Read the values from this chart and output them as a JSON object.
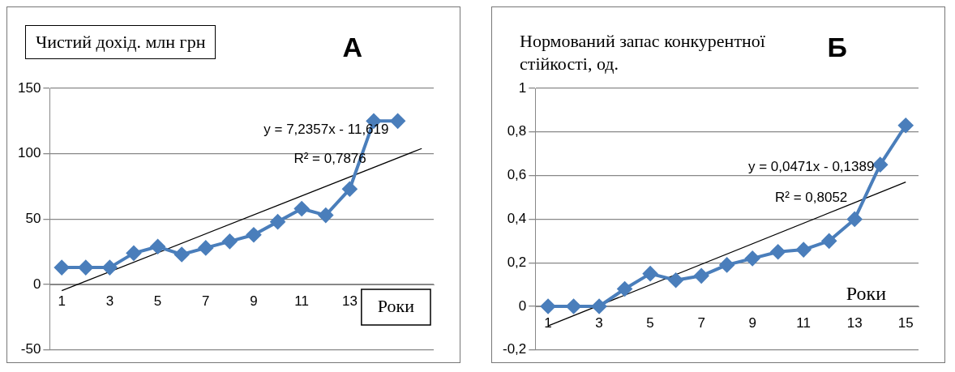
{
  "chart_data": [
    {
      "type": "line",
      "title": "А",
      "ylabel": "Чистий дохід. млн  грн",
      "xlabel": "Роки",
      "grid": "y",
      "marker": "diamond",
      "line_style": "solid",
      "legend": false,
      "xlim": [
        0.5,
        16.5
      ],
      "xticks": [
        1,
        3,
        5,
        7,
        9,
        11,
        13
      ],
      "ylim": [
        -50,
        150
      ],
      "yticks": [
        -50,
        0,
        50,
        100,
        150
      ],
      "series": [
        {
          "x": [
            1,
            2,
            3,
            4,
            5,
            6,
            7,
            8,
            9,
            10,
            11,
            12,
            13,
            14,
            15
          ],
          "color": "#4a7ebb",
          "values": [
            13,
            13,
            13,
            24,
            29,
            23,
            28,
            33,
            38,
            48,
            58,
            53,
            73,
            125,
            125
          ]
        },
        {
          "type": "line",
          "x": [
            1,
            16
          ],
          "color": "#000000",
          "marker": "none",
          "values": [
            -4.7,
            104
          ]
        }
      ],
      "annotations": [
        "y = 7,2357x - 11,619",
        "R² = 0,7876"
      ]
    },
    {
      "type": "line",
      "title": "Б",
      "ylabel": "Нормований запас конкурентної стійкості, од.",
      "xlabel": "Роки",
      "grid": "y",
      "marker": "diamond",
      "line_style": "solid",
      "legend": false,
      "xlim": [
        0.5,
        15.5
      ],
      "xticks": [
        1,
        3,
        5,
        7,
        9,
        11,
        13,
        15
      ],
      "ylim": [
        -0.2,
        1
      ],
      "yticks": [
        {
          "value": -0.2,
          "label": "-0,2"
        },
        0,
        {
          "value": 0.2,
          "label": "0,2"
        },
        {
          "value": 0.4,
          "label": "0,4"
        },
        {
          "value": 0.6,
          "label": "0,6"
        },
        {
          "value": 0.8,
          "label": "0,8"
        },
        1
      ],
      "series": [
        {
          "x": [
            1,
            2,
            3,
            4,
            5,
            6,
            7,
            8,
            9,
            10,
            11,
            12,
            13,
            14,
            15
          ],
          "color": "#4a7ebb",
          "values": [
            0,
            0,
            0,
            0.08,
            0.15,
            0.12,
            0.14,
            0.19,
            0.22,
            0.25,
            0.26,
            0.3,
            0.4,
            0.65,
            0.83
          ]
        },
        {
          "type": "line",
          "x": [
            1,
            15
          ],
          "color": "#000000",
          "marker": "none",
          "values": [
            -0.09,
            0.57
          ]
        }
      ],
      "annotations": [
        "y = 0,0471x - 0,1389",
        "R² = 0,8052"
      ]
    }
  ]
}
